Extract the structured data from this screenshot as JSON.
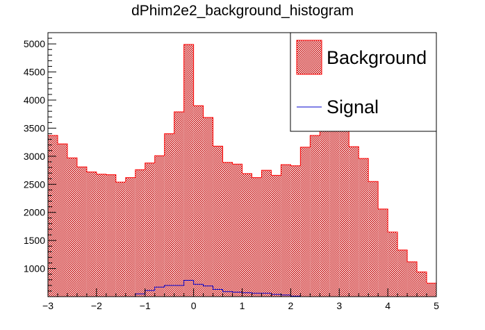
{
  "chart_data": {
    "type": "bar",
    "title": "dPhim2e2_background_histogram",
    "xlabel": "",
    "ylabel": "",
    "xlim": [
      -3,
      5
    ],
    "ylim": [
      500,
      5200
    ],
    "x_ticks": [
      "−3",
      "−2",
      "−1",
      "0",
      "1",
      "2",
      "3",
      "4",
      "5"
    ],
    "y_ticks": [
      "1000",
      "1500",
      "2000",
      "2500",
      "3000",
      "3500",
      "4000",
      "4500",
      "5000"
    ],
    "bin_width": 0.2,
    "bin_edges_start": -3,
    "legend_position": "top-right",
    "series": [
      {
        "name": "Background",
        "style": "hatched-fill",
        "color": "#ff0000",
        "values": [
          3370,
          3220,
          2970,
          2810,
          2720,
          2680,
          2670,
          2540,
          2620,
          2760,
          2880,
          3010,
          3400,
          3790,
          4990,
          3900,
          3690,
          3180,
          2890,
          2860,
          2690,
          2620,
          2750,
          2660,
          2850,
          2830,
          3160,
          3370,
          3460,
          3520,
          3500,
          3170,
          2960,
          2550,
          2060,
          1650,
          1330,
          1120,
          940,
          740
        ]
      },
      {
        "name": "Signal",
        "style": "line",
        "color": "#0000cc",
        "values": [
          500,
          500,
          500,
          500,
          500,
          500,
          500,
          500,
          500,
          550,
          610,
          670,
          700,
          700,
          790,
          720,
          690,
          630,
          590,
          580,
          570,
          560,
          560,
          540,
          530,
          510,
          500,
          500,
          500,
          500,
          500,
          500,
          500,
          500,
          500,
          500,
          500,
          500,
          500,
          500
        ]
      }
    ]
  }
}
